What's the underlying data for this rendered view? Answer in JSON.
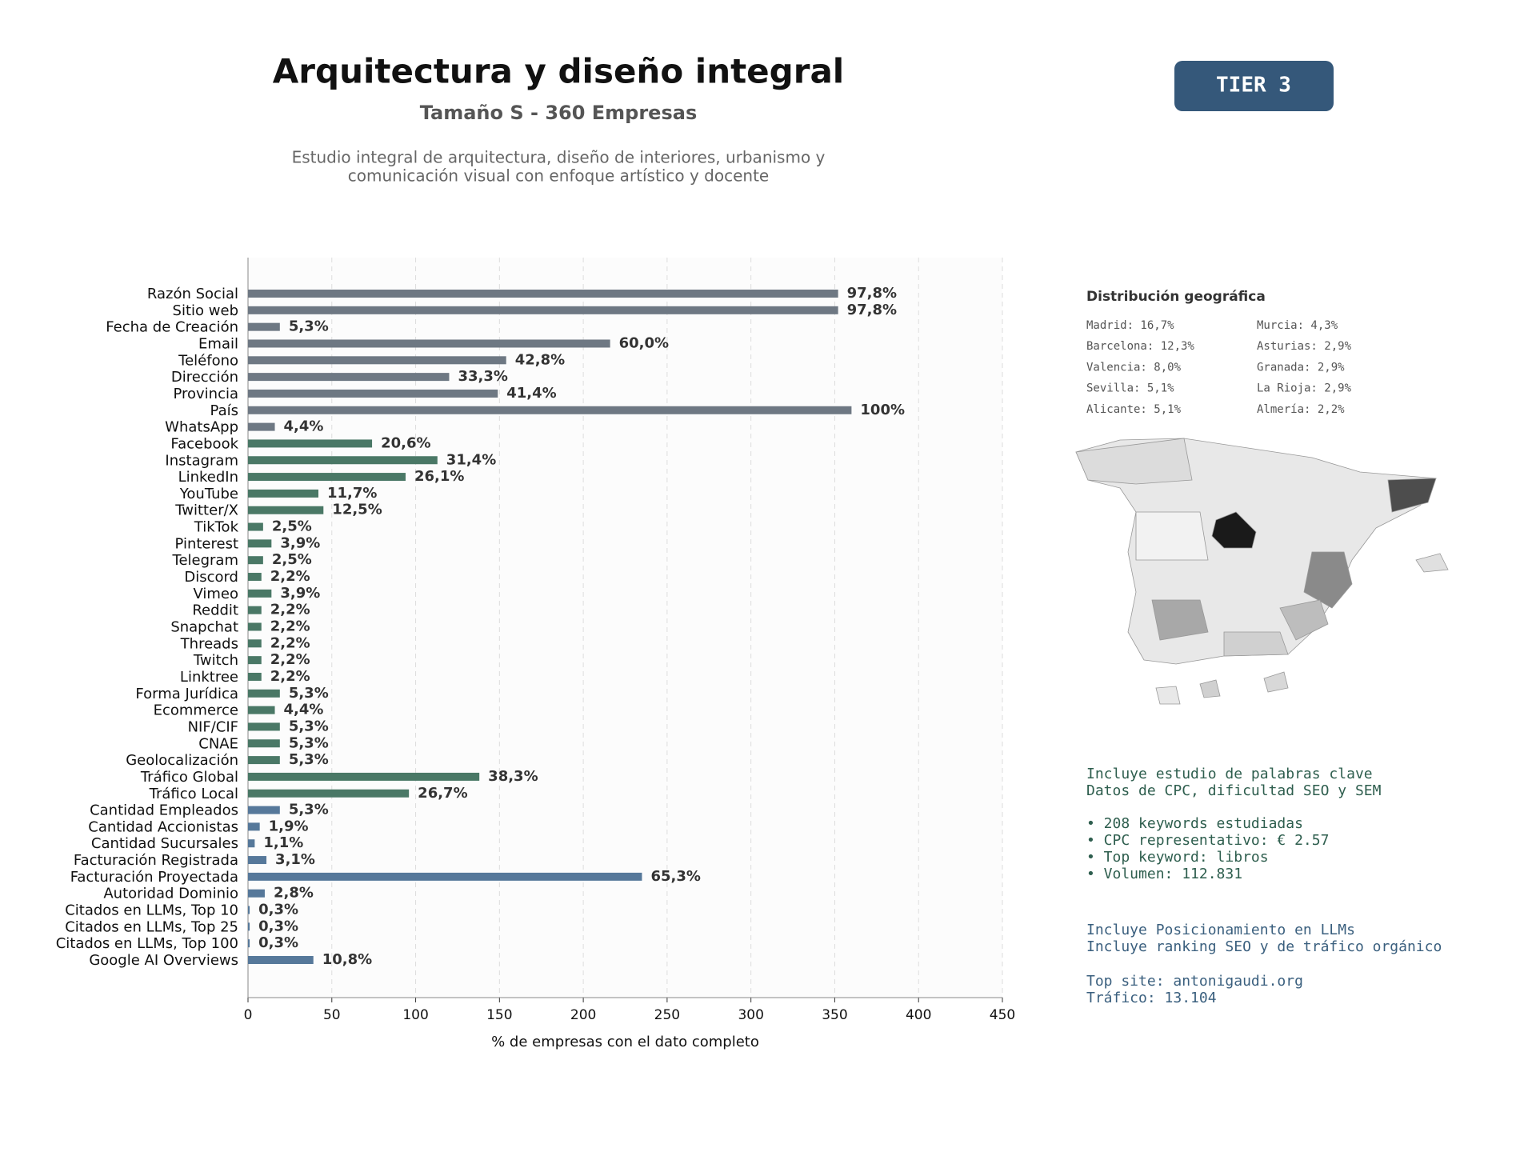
{
  "header": {
    "title": "Arquitectura y diseño integral",
    "subtitle": "Tamaño S - 360 Empresas",
    "description": [
      "Estudio integral de arquitectura, diseño de interiores, urbanismo y",
      "comunicación visual con enfoque artístico y docente"
    ]
  },
  "badge": "TIER 3",
  "chart_data": {
    "type": "hbar",
    "categories": [
      "Razón Social",
      "Sitio web",
      "Fecha de Creación",
      "Email",
      "Teléfono",
      "Dirección",
      "Provincia",
      "País",
      "WhatsApp",
      "Facebook",
      "Instagram",
      "LinkedIn",
      "YouTube",
      "Twitter/X",
      "TikTok",
      "Pinterest",
      "Telegram",
      "Discord",
      "Vimeo",
      "Reddit",
      "Snapchat",
      "Threads",
      "Twitch",
      "Linktree",
      "Forma Jurídica",
      "Ecommerce",
      "NIF/CIF",
      "CNAE",
      "Geolocalización",
      "Tráfico Global",
      "Tráfico Local",
      "Cantidad Empleados",
      "Cantidad Accionistas",
      "Cantidad Sucursales",
      "Facturación Registrada",
      "Facturación Proyectada",
      "Autoridad Dominio",
      "Citados en LLMs, Top 10",
      "Citados en LLMs, Top 25",
      "Citados en LLMs, Top 100",
      "Google AI Overviews"
    ],
    "values": [
      352,
      352,
      19,
      216,
      154,
      120,
      149,
      360,
      16,
      74,
      113,
      94,
      42,
      45,
      9,
      14,
      9,
      8,
      14,
      8,
      8,
      8,
      8,
      8,
      19,
      16,
      19,
      19,
      19,
      138,
      96,
      19,
      7,
      4,
      11,
      235,
      10,
      1,
      1,
      1,
      39
    ],
    "value_labels": [
      "97,8%",
      "97,8%",
      "5,3%",
      "60,0%",
      "42,8%",
      "33,3%",
      "41,4%",
      "100%",
      "4,4%",
      "20,6%",
      "31,4%",
      "26,1%",
      "11,7%",
      "12,5%",
      "2,5%",
      "3,9%",
      "2,5%",
      "2,2%",
      "3,9%",
      "2,2%",
      "2,2%",
      "2,2%",
      "2,2%",
      "2,2%",
      "5,3%",
      "4,4%",
      "5,3%",
      "5,3%",
      "5,3%",
      "38,3%",
      "26,7%",
      "5,3%",
      "1,9%",
      "1,1%",
      "3,1%",
      "65,3%",
      "2,8%",
      "0,3%",
      "0,3%",
      "0,3%",
      "10,8%"
    ],
    "colors": [
      "#6e7883",
      "#6e7883",
      "#6e7883",
      "#6e7883",
      "#6e7883",
      "#6e7883",
      "#6e7883",
      "#6e7883",
      "#6e7883",
      "#4a7866",
      "#4a7866",
      "#4a7866",
      "#4a7866",
      "#4a7866",
      "#4a7866",
      "#4a7866",
      "#4a7866",
      "#4a7866",
      "#4a7866",
      "#4a7866",
      "#4a7866",
      "#4a7866",
      "#4a7866",
      "#4a7866",
      "#4a7866",
      "#4a7866",
      "#4a7866",
      "#4a7866",
      "#4a7866",
      "#4a7866",
      "#4a7866",
      "#56789a",
      "#56789a",
      "#56789a",
      "#56789a",
      "#56789a",
      "#56789a",
      "#56789a",
      "#56789a",
      "#56789a",
      "#56789a"
    ],
    "xlim": [
      0,
      450
    ],
    "xticks": [
      0,
      50,
      100,
      150,
      200,
      250,
      300,
      350,
      400,
      450
    ],
    "xlabel": "% de empresas con el dato completo",
    "grid": true
  },
  "geo": {
    "title": "Distribución geográfica",
    "items": [
      "Madrid: 16,7%",
      "Barcelona: 12,3%",
      "Valencia: 8,0%",
      "Sevilla: 5,1%",
      "Alicante: 5,1%",
      "Murcia: 4,3%",
      "Asturias: 2,9%",
      "Granada: 2,9%",
      "La Rioja: 2,9%",
      "Almería: 2,2%"
    ]
  },
  "notes": {
    "seo_intro": [
      "Incluye estudio de palabras clave",
      "Datos de CPC, dificultad SEO y SEM"
    ],
    "seo_bullets": [
      "• 208 keywords estudiadas",
      "• CPC representativo: € 2.57",
      "• Top keyword: libros",
      "• Volumen: 112.831"
    ],
    "llm_intro": [
      "Incluye Posicionamiento en LLMs",
      "Incluye ranking SEO y de tráfico orgánico"
    ],
    "llm_site": [
      "Top site: antonigaudi.org",
      "Tráfico: 13.104"
    ]
  }
}
